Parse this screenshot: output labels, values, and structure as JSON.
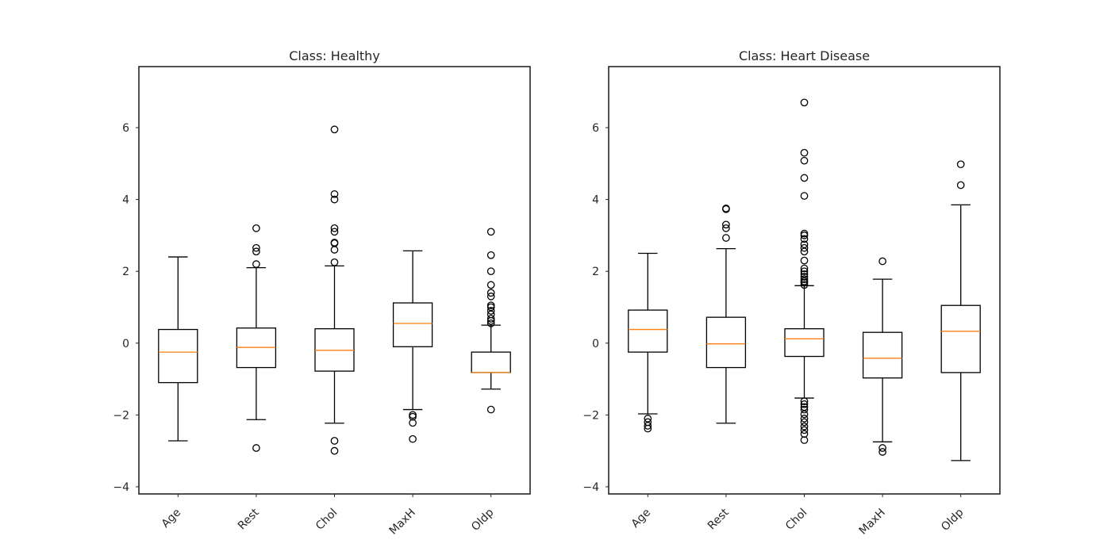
{
  "chart_data": [
    {
      "type": "box",
      "title": "Class: Healthy",
      "categories": [
        "Age",
        "Rest",
        "Chol",
        "MaxH",
        "Oldp"
      ],
      "ylim": [
        -4.2,
        7.7
      ],
      "yticks": [
        -4,
        -2,
        0,
        2,
        4,
        6
      ],
      "ytick_labels": [
        "−4",
        "−2",
        "0",
        "2",
        "4",
        "6"
      ],
      "grid": false,
      "box_color": "#000000",
      "median_color": "#ff7f0e",
      "boxes": [
        {
          "label": "Age",
          "whisker_low": -2.72,
          "q1": -1.1,
          "median": -0.25,
          "q3": 0.38,
          "whisker_high": 2.4,
          "outliers": []
        },
        {
          "label": "Rest",
          "whisker_low": -2.13,
          "q1": -0.68,
          "median": -0.12,
          "q3": 0.42,
          "whisker_high": 2.1,
          "outliers": [
            2.2,
            2.55,
            2.65,
            3.2,
            -2.92
          ]
        },
        {
          "label": "Chol",
          "whisker_low": -2.23,
          "q1": -0.78,
          "median": -0.2,
          "q3": 0.4,
          "whisker_high": 2.15,
          "outliers": [
            2.25,
            2.6,
            2.78,
            2.8,
            3.1,
            3.2,
            4.0,
            4.15,
            5.95,
            -2.72,
            -3.0
          ]
        },
        {
          "label": "MaxH",
          "whisker_low": -1.85,
          "q1": -0.1,
          "median": 0.55,
          "q3": 1.12,
          "whisker_high": 2.57,
          "outliers": [
            -2.0,
            -2.05,
            -2.22,
            -2.67
          ]
        },
        {
          "label": "Oldp",
          "whisker_low": -1.28,
          "q1": -0.82,
          "median": -0.82,
          "q3": -0.25,
          "whisker_high": 0.5,
          "outliers": [
            0.55,
            0.62,
            0.68,
            0.8,
            0.9,
            1.0,
            1.05,
            1.3,
            1.4,
            1.62,
            2.0,
            2.45,
            3.1,
            -1.85
          ]
        }
      ]
    },
    {
      "type": "box",
      "title": "Class: Heart Disease",
      "categories": [
        "Age",
        "Rest",
        "Chol",
        "MaxH",
        "Oldp"
      ],
      "ylim": [
        -4.2,
        7.7
      ],
      "yticks": [
        -4,
        -2,
        0,
        2,
        4,
        6
      ],
      "ytick_labels": [
        "−4",
        "−2",
        "0",
        "2",
        "4",
        "6"
      ],
      "grid": false,
      "box_color": "#000000",
      "median_color": "#ff7f0e",
      "boxes": [
        {
          "label": "Age",
          "whisker_low": -1.97,
          "q1": -0.25,
          "median": 0.38,
          "q3": 0.92,
          "whisker_high": 2.5,
          "outliers": [
            -2.1,
            -2.2,
            -2.3,
            -2.38
          ]
        },
        {
          "label": "Rest",
          "whisker_low": -2.23,
          "q1": -0.68,
          "median": -0.02,
          "q3": 0.72,
          "whisker_high": 2.63,
          "outliers": [
            2.93,
            3.2,
            3.3,
            3.73,
            3.75
          ]
        },
        {
          "label": "Chol",
          "whisker_low": -1.53,
          "q1": -0.37,
          "median": 0.12,
          "q3": 0.4,
          "whisker_high": 1.6,
          "outliers": [
            1.62,
            1.68,
            1.72,
            1.78,
            1.85,
            1.92,
            2.0,
            2.08,
            2.3,
            2.55,
            2.65,
            2.75,
            2.9,
            3.0,
            3.05,
            4.1,
            4.6,
            5.08,
            5.3,
            6.7,
            -1.62,
            -1.7,
            -1.78,
            -1.85,
            -1.98,
            -2.1,
            -2.2,
            -2.32,
            -2.42,
            -2.53,
            -2.7
          ]
        },
        {
          "label": "MaxH",
          "whisker_low": -2.75,
          "q1": -0.97,
          "median": -0.42,
          "q3": 0.3,
          "whisker_high": 1.78,
          "outliers": [
            2.28,
            -2.92,
            -3.03
          ]
        },
        {
          "label": "Oldp",
          "whisker_low": -3.27,
          "q1": -0.82,
          "median": 0.33,
          "q3": 1.05,
          "whisker_high": 3.85,
          "outliers": [
            4.4,
            4.98
          ]
        }
      ]
    }
  ]
}
